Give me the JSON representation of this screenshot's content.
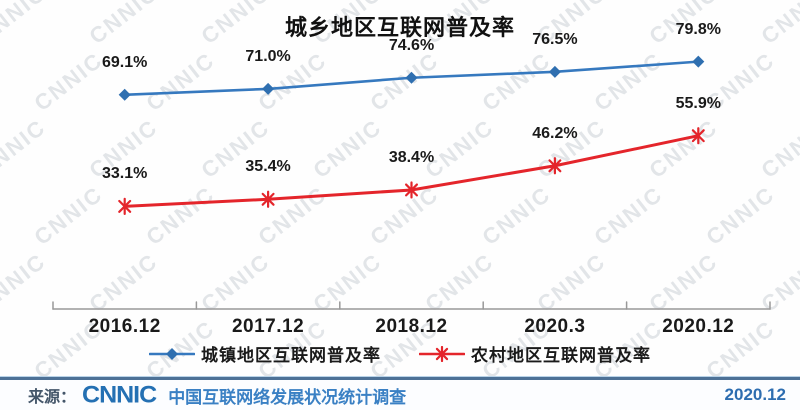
{
  "watermark": {
    "text": "CNNIC"
  },
  "chart_data": {
    "type": "line",
    "title": "城乡地区互联网普及率",
    "categories": [
      "2016.12",
      "2017.12",
      "2018.12",
      "2020.3",
      "2020.12"
    ],
    "series": [
      {
        "name": "城镇地区互联网普及率",
        "values": [
          69.1,
          71.0,
          74.6,
          76.5,
          79.8
        ],
        "labels": [
          "69.1%",
          "71.0%",
          "74.6%",
          "76.5%",
          "79.8%"
        ],
        "color": "#3679bf",
        "marker_color": "#2f6fb0",
        "marker": "diamond"
      },
      {
        "name": "农村地区互联网普及率",
        "values": [
          33.1,
          35.4,
          38.4,
          46.2,
          55.9
        ],
        "labels": [
          "33.1%",
          "35.4%",
          "38.4%",
          "46.2%",
          "55.9%"
        ],
        "color": "#e4252b",
        "marker_color": "#e4252b",
        "marker": "asterisk"
      }
    ],
    "xlabel": "",
    "ylabel": "",
    "ylim": [
      0,
      90
    ],
    "grid": false,
    "legend_position": "bottom",
    "axis_color": "#999999",
    "label_format": "percent"
  },
  "footer": {
    "source_label": "来源：",
    "logo": "CNNIC",
    "description": "中国互联网络发展状况统计调查",
    "date": "2020.12"
  }
}
